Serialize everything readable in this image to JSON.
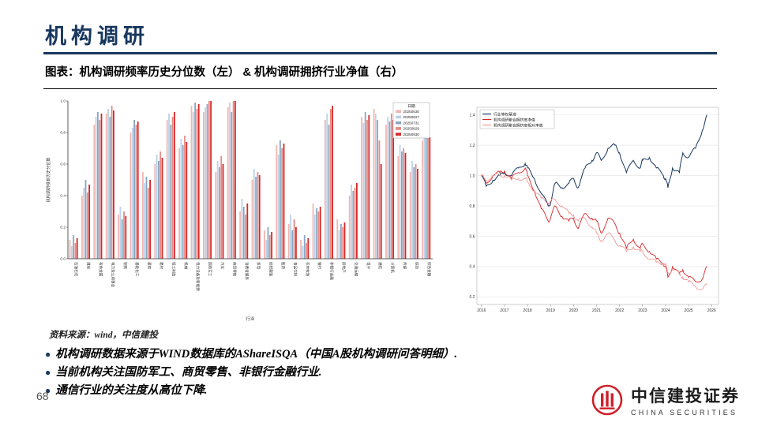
{
  "header": {
    "title": "机构调研",
    "caption": "图表：机构调研频率历史分位数（左） & 机构调研拥挤行业净值（右）"
  },
  "source": "资料来源：wind，中信建投",
  "bullets": [
    {
      "text": "机构调研数据来源于WIND数据库的AShareISQA（中国A股机构调研问答明细）."
    },
    {
      "text": "当前机构关注国防军工、商贸零售、非银行金融行业."
    },
    {
      "text": "通信行业的关注度从高位下降."
    }
  ],
  "page_number": "68",
  "logo": {
    "name_cn": "中信建投证券",
    "name_en": "CHINA SECURITIES",
    "color": "#CE2029"
  },
  "chart_data": [
    {
      "type": "bar",
      "title": "机构调研频率历史分位数",
      "legend_title": "日期",
      "legend_position": "upper right",
      "grid": false,
      "ylabel": "机构调研频率历史分位数",
      "xlabel": "行业",
      "ylim": [
        0,
        1.0
      ],
      "yticks": [
        0.0,
        0.2,
        0.4,
        0.6,
        0.8,
        1.0
      ],
      "categories": [
        "石油石化",
        "煤炭",
        "有色金属",
        "电力及公用事业",
        "钢铁",
        "基础化工",
        "建筑",
        "建材",
        "轻工制造",
        "机械",
        "电力设备及新能源",
        "国防军工",
        "汽车",
        "商贸零售",
        "消费者服务",
        "家电",
        "纺织服装",
        "医药",
        "食品饮料",
        "农林牧渔",
        "银行",
        "非银行金融",
        "房地产",
        "交通运输",
        "电子",
        "通信",
        "计算机",
        "传媒",
        "综合",
        "综合金融"
      ],
      "series": [
        {
          "name": "20250530",
          "color": "#f2b6b2",
          "values": [
            0.12,
            0.4,
            0.85,
            0.92,
            0.28,
            0.8,
            0.55,
            0.6,
            0.88,
            0.7,
            0.97,
            0.93,
            0.55,
            0.96,
            0.3,
            0.5,
            0.18,
            0.72,
            0.22,
            0.12,
            0.35,
            0.88,
            0.25,
            0.4,
            0.9,
            0.95,
            0.85,
            0.65,
            0.55,
            0.75
          ]
        },
        {
          "name": "20250627",
          "color": "#bcd2e8",
          "values": [
            0.08,
            0.45,
            0.9,
            0.95,
            0.33,
            0.83,
            0.48,
            0.66,
            0.92,
            0.76,
            0.93,
            0.96,
            0.62,
            0.99,
            0.38,
            0.57,
            0.12,
            0.66,
            0.28,
            0.08,
            0.28,
            0.92,
            0.18,
            0.47,
            0.86,
            0.92,
            0.9,
            0.72,
            0.62,
            0.82
          ]
        },
        {
          "name": "20250731",
          "color": "#8ca6c0",
          "values": [
            0.15,
            0.5,
            0.93,
            0.9,
            0.25,
            0.88,
            0.52,
            0.62,
            0.85,
            0.72,
            0.99,
            0.98,
            0.58,
            0.93,
            0.33,
            0.52,
            0.2,
            0.75,
            0.18,
            0.15,
            0.32,
            0.85,
            0.22,
            0.43,
            0.93,
            0.88,
            0.87,
            0.68,
            0.58,
            0.78
          ]
        },
        {
          "name": "20250829",
          "color": "#e88a86",
          "values": [
            0.1,
            0.42,
            0.88,
            0.97,
            0.3,
            0.85,
            0.45,
            0.68,
            0.9,
            0.78,
            0.95,
            1.0,
            0.65,
            1.0,
            0.28,
            0.55,
            0.15,
            0.7,
            0.25,
            0.1,
            0.3,
            0.95,
            0.2,
            0.45,
            0.88,
            0.75,
            0.92,
            0.7,
            0.6,
            0.8
          ]
        },
        {
          "name": "20250930",
          "color": "#d62728",
          "values": [
            0.13,
            0.47,
            0.92,
            0.94,
            0.27,
            0.87,
            0.5,
            0.64,
            0.93,
            0.74,
            0.98,
            1.0,
            0.6,
            1.0,
            0.35,
            0.53,
            0.17,
            0.73,
            0.2,
            0.13,
            0.33,
            0.97,
            0.23,
            0.48,
            0.91,
            0.6,
            0.88,
            0.67,
            0.57,
            0.77
          ]
        }
      ]
    },
    {
      "type": "line",
      "title": "机构调研拥挤行业净值",
      "legend_position": "upper left",
      "grid": true,
      "ylim": [
        0.15,
        1.45
      ],
      "yticks": [
        0.2,
        0.4,
        0.6,
        0.8,
        1.0,
        1.2,
        1.4
      ],
      "xticks": [
        2016,
        2017,
        2018,
        2019,
        2020,
        2021,
        2022,
        2023,
        2024,
        2025,
        2026
      ],
      "x": [
        2016.0,
        2016.2,
        2016.5,
        2016.8,
        2017.0,
        2017.3,
        2017.6,
        2017.9,
        2018.0,
        2018.3,
        2018.6,
        2018.9,
        2019.0,
        2019.2,
        2019.5,
        2019.8,
        2020.0,
        2020.2,
        2020.5,
        2020.8,
        2021.0,
        2021.2,
        2021.5,
        2021.8,
        2022.0,
        2022.3,
        2022.6,
        2022.9,
        2023.0,
        2023.3,
        2023.6,
        2023.9,
        2024.0,
        2024.1,
        2024.3,
        2024.6,
        2024.75,
        2025.0,
        2025.3,
        2025.6,
        2025.8
      ],
      "series": [
        {
          "name": "行业等权基准",
          "color": "#17375E",
          "values": [
            1.0,
            0.93,
            0.97,
            1.0,
            1.02,
            1.0,
            1.05,
            1.08,
            1.05,
            0.98,
            0.88,
            0.8,
            0.82,
            0.95,
            0.92,
            0.95,
            0.98,
            0.92,
            1.05,
            1.1,
            1.15,
            1.1,
            1.18,
            1.2,
            1.15,
            1.02,
            1.1,
            1.05,
            1.1,
            1.12,
            1.05,
            1.0,
            0.98,
            0.92,
            1.05,
            1.02,
            1.15,
            1.12,
            1.18,
            1.3,
            1.4
          ]
        },
        {
          "name": "机构调研聚合拥挤度净值",
          "color": "#d62728",
          "values": [
            1.0,
            0.95,
            1.0,
            1.02,
            1.03,
            0.98,
            1.02,
            1.05,
            1.0,
            0.9,
            0.78,
            0.7,
            0.72,
            0.8,
            0.73,
            0.7,
            0.72,
            0.65,
            0.75,
            0.72,
            0.7,
            0.62,
            0.72,
            0.68,
            0.62,
            0.52,
            0.58,
            0.52,
            0.55,
            0.5,
            0.45,
            0.42,
            0.4,
            0.33,
            0.4,
            0.35,
            0.38,
            0.33,
            0.3,
            0.32,
            0.4
          ]
        },
        {
          "name": "机构调研聚合拥挤度相对净值",
          "color": "#f09a96",
          "values": [
            1.0,
            0.97,
            1.0,
            1.0,
            1.0,
            0.97,
            0.98,
            0.98,
            0.96,
            0.9,
            0.85,
            0.82,
            0.83,
            0.84,
            0.8,
            0.75,
            0.74,
            0.7,
            0.72,
            0.66,
            0.62,
            0.57,
            0.62,
            0.57,
            0.54,
            0.5,
            0.53,
            0.5,
            0.5,
            0.45,
            0.43,
            0.42,
            0.41,
            0.36,
            0.38,
            0.35,
            0.33,
            0.3,
            0.27,
            0.25,
            0.28
          ]
        }
      ]
    }
  ]
}
